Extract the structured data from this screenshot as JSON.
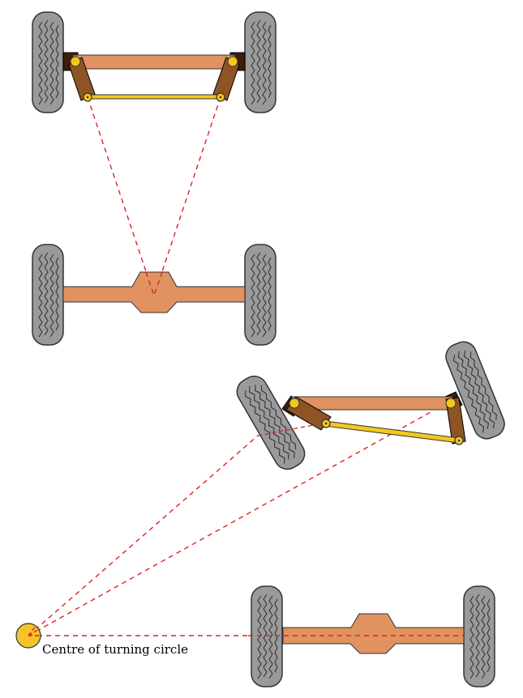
{
  "diagram": {
    "type": "ackermann-steering-geometry",
    "caption": "Centre of turning circle",
    "colors": {
      "beam": "#E09260",
      "arm": "#8F5426",
      "tie_rod": "#F2C81E",
      "pivot": "#F2C81E",
      "tyre": "#9A9A9A",
      "construction_line": "#DD2222",
      "centre_marker": "#F4C52A"
    },
    "scenes": [
      {
        "name": "straight-ahead",
        "steer_left_deg": 0,
        "steer_right_deg": 0
      },
      {
        "name": "turning-left",
        "steer_left_deg": -30,
        "steer_right_deg": -22
      }
    ]
  }
}
